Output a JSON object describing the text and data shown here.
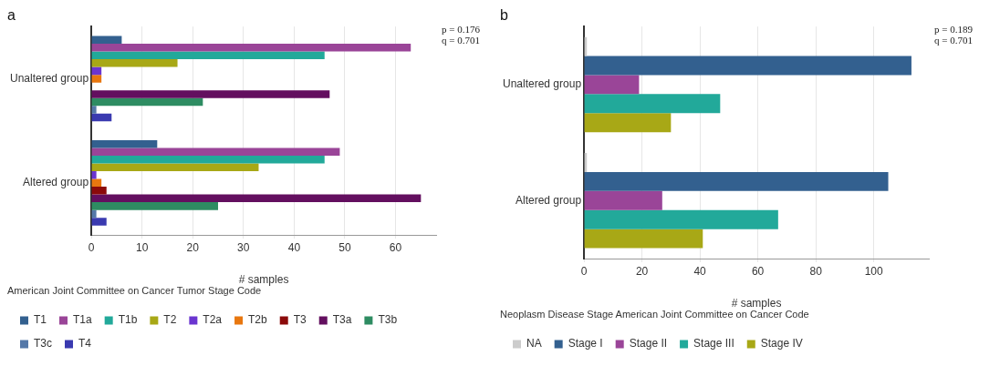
{
  "chart_data": [
    {
      "type": "bar",
      "orientation": "horizontal",
      "title": "a",
      "xlabel": "# samples",
      "legend_title": "American Joint Committee on Cancer Tumor Stage Code",
      "categories": [
        "Unaltered group",
        "Altered group"
      ],
      "xlim": [
        0,
        68
      ],
      "xticks": [
        0,
        10,
        20,
        30,
        40,
        50,
        60
      ],
      "grid": "x",
      "legend": "bottom",
      "annotations": [
        "p = 0.176",
        "q = 0.701"
      ],
      "series": [
        {
          "name": "T1",
          "color": "#33608f",
          "values": [
            6,
            13
          ]
        },
        {
          "name": "T1a",
          "color": "#9a4598",
          "values": [
            63,
            49
          ]
        },
        {
          "name": "T1b",
          "color": "#22a99a",
          "values": [
            46,
            46
          ]
        },
        {
          "name": "T2",
          "color": "#a8a816",
          "values": [
            17,
            33
          ]
        },
        {
          "name": "T2a",
          "color": "#6a35d0",
          "values": [
            2,
            1
          ]
        },
        {
          "name": "T2b",
          "color": "#e8770f",
          "values": [
            2,
            2
          ]
        },
        {
          "name": "T3",
          "color": "#8b0a0a",
          "values": [
            0,
            3
          ]
        },
        {
          "name": "T3a",
          "color": "#630f5f",
          "values": [
            47,
            65
          ]
        },
        {
          "name": "T3b",
          "color": "#2e8c62",
          "values": [
            22,
            25
          ]
        },
        {
          "name": "T3c",
          "color": "#5478a8",
          "values": [
            1,
            1
          ]
        },
        {
          "name": "T4",
          "color": "#3a3ab0",
          "values": [
            4,
            3
          ]
        }
      ]
    },
    {
      "type": "bar",
      "orientation": "horizontal",
      "title": "b",
      "xlabel": "# samples",
      "legend_title": "Neoplasm Disease Stage American Joint Committee on Cancer Code",
      "categories": [
        "Unaltered group",
        "Altered group"
      ],
      "xlim": [
        0,
        119
      ],
      "xticks": [
        0,
        20,
        40,
        60,
        80,
        100
      ],
      "grid": "x",
      "legend": "bottom",
      "annotations": [
        "p = 0.189",
        "q = 0.701"
      ],
      "series": [
        {
          "name": "NA",
          "color": "#cccccc",
          "values": [
            1,
            1
          ]
        },
        {
          "name": "Stage I",
          "color": "#33608f",
          "values": [
            113,
            105
          ]
        },
        {
          "name": "Stage II",
          "color": "#9a4598",
          "values": [
            19,
            27
          ]
        },
        {
          "name": "Stage III",
          "color": "#22a99a",
          "values": [
            47,
            67
          ]
        },
        {
          "name": "Stage IV",
          "color": "#a8a816",
          "values": [
            30,
            41
          ]
        }
      ]
    }
  ]
}
